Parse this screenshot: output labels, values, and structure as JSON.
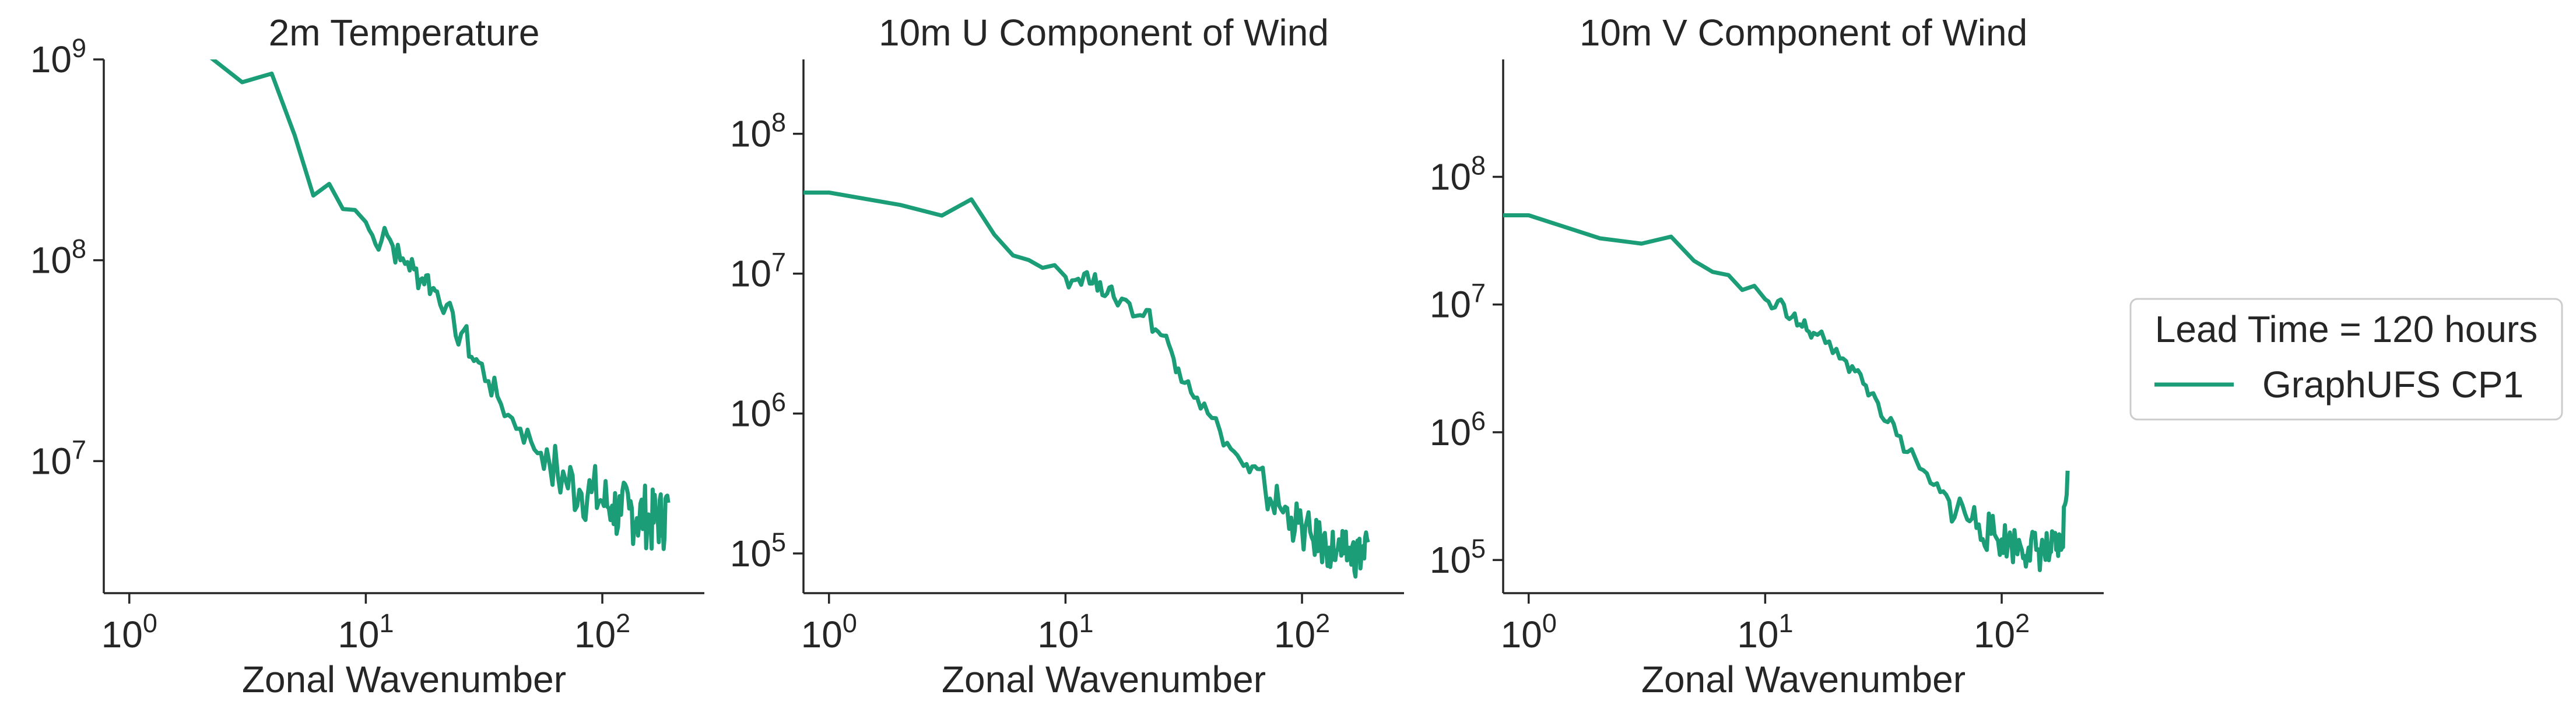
{
  "legend": {
    "title": "Lead Time = 120 hours",
    "entries": [
      {
        "label": "GraphUFS CP1",
        "color": "#1b9e77"
      }
    ]
  },
  "chart_data": [
    {
      "type": "line",
      "title": "2m Temperature",
      "xlabel": "Zonal Wavenumber",
      "ylabel": "",
      "xscale": "log",
      "yscale": "log",
      "xlim": [
        0.78,
        270
      ],
      "ylim": [
        2200000,
        1000000000
      ],
      "xticks": [
        {
          "v": 1,
          "b": "10",
          "e": "0"
        },
        {
          "v": 10,
          "b": "10",
          "e": "1"
        },
        {
          "v": 100,
          "b": "10",
          "e": "2"
        }
      ],
      "yticks": [
        {
          "v": 10000000,
          "b": "10",
          "e": "7"
        },
        {
          "v": 100000000,
          "b": "10",
          "e": "8"
        },
        {
          "v": 1000000000,
          "b": "10",
          "e": "9"
        }
      ],
      "series": [
        {
          "name": "GraphUFS CP1",
          "color": "#1b9e77",
          "x": [
            2,
            3,
            4,
            5,
            6,
            7,
            8,
            9,
            10,
            11,
            12,
            13,
            14,
            15,
            16,
            17,
            18,
            19,
            20,
            22,
            24,
            26,
            28,
            30,
            33,
            36,
            40,
            45,
            50,
            55,
            60,
            70,
            80,
            90,
            100,
            110,
            120,
            130,
            140,
            150,
            160,
            170,
            180,
            190
          ],
          "y": [
            1120000000,
            770000000,
            850000000,
            420000000,
            210000000,
            240000000,
            180000000,
            178000000,
            155000000,
            120000000,
            145000000,
            118000000,
            100000000,
            98000000,
            90000000,
            80000000,
            84000000,
            72000000,
            70000000,
            60000000,
            42000000,
            45000000,
            33000000,
            31000000,
            25000000,
            21000000,
            17000000,
            14500000,
            12500000,
            11000000,
            9500000,
            8000000,
            7200000,
            7000000,
            6300000,
            6000000,
            5400000,
            5800000,
            5200000,
            5500000,
            4900000,
            5300000,
            5000000,
            6200000
          ]
        }
      ]
    },
    {
      "type": "line",
      "title": "10m U Component of Wind",
      "xlabel": "Zonal Wavenumber",
      "ylabel": "",
      "xscale": "log",
      "yscale": "log",
      "xlim": [
        0.78,
        270
      ],
      "ylim": [
        52000,
        340000000
      ],
      "xticks": [
        {
          "v": 1,
          "b": "10",
          "e": "0"
        },
        {
          "v": 10,
          "b": "10",
          "e": "1"
        },
        {
          "v": 100,
          "b": "10",
          "e": "2"
        }
      ],
      "yticks": [
        {
          "v": 100000,
          "b": "10",
          "e": "5"
        },
        {
          "v": 1000000,
          "b": "10",
          "e": "6"
        },
        {
          "v": 10000000,
          "b": "10",
          "e": "7"
        },
        {
          "v": 100000000,
          "b": "10",
          "e": "8"
        }
      ],
      "series": [
        {
          "name": "GraphUFS CP1",
          "color": "#1b9e77",
          "x": [
            0.78,
            1,
            2,
            3,
            4,
            5,
            6,
            7,
            8,
            9,
            10,
            11,
            12,
            13,
            14,
            15,
            16,
            18,
            20,
            22,
            24,
            26,
            28,
            30,
            33,
            36,
            40,
            45,
            50,
            55,
            60,
            70,
            80,
            90,
            100,
            110,
            120,
            130,
            140,
            150,
            160,
            170,
            180,
            190
          ],
          "y": [
            38000000,
            38000000,
            31000000,
            26000000,
            34000000,
            19000000,
            13500000,
            12500000,
            11000000,
            11500000,
            9500000,
            9000000,
            10000000,
            8500000,
            8700000,
            7200000,
            6800000,
            6500000,
            5000000,
            5500000,
            4000000,
            3600000,
            2800000,
            2100000,
            1700000,
            1300000,
            1000000,
            750000,
            560000,
            460000,
            380000,
            280000,
            220000,
            180000,
            150000,
            130000,
            120000,
            110000,
            105000,
            100000,
            100000,
            98000,
            97000,
            120000
          ]
        }
      ]
    },
    {
      "type": "line",
      "title": "10m V Component of Wind",
      "xlabel": "Zonal Wavenumber",
      "ylabel": "",
      "xscale": "log",
      "yscale": "log",
      "xlim": [
        0.78,
        270
      ],
      "ylim": [
        55000,
        830000000
      ],
      "xticks": [
        {
          "v": 1,
          "b": "10",
          "e": "0"
        },
        {
          "v": 10,
          "b": "10",
          "e": "1"
        },
        {
          "v": 100,
          "b": "10",
          "e": "2"
        }
      ],
      "yticks": [
        {
          "v": 100000,
          "b": "10",
          "e": "5"
        },
        {
          "v": 1000000,
          "b": "10",
          "e": "6"
        },
        {
          "v": 10000000,
          "b": "10",
          "e": "7"
        },
        {
          "v": 100000000,
          "b": "10",
          "e": "8"
        }
      ],
      "series": [
        {
          "name": "GraphUFS CP1",
          "color": "#1b9e77",
          "x": [
            0.78,
            1,
            2,
            3,
            4,
            5,
            6,
            7,
            8,
            9,
            10,
            11,
            12,
            13,
            14,
            15,
            16,
            18,
            20,
            22,
            24,
            26,
            28,
            30,
            33,
            36,
            40,
            45,
            50,
            55,
            60,
            70,
            80,
            90,
            100,
            110,
            120,
            130,
            140,
            150,
            160,
            170,
            180,
            190
          ],
          "y": [
            50000000,
            50000000,
            33000000,
            30000000,
            34000000,
            22000000,
            18000000,
            17000000,
            13000000,
            14000000,
            11000000,
            9500000,
            10000000,
            8000000,
            7000000,
            6300000,
            6000000,
            5000000,
            4500000,
            3600000,
            3000000,
            2400000,
            2000000,
            1700000,
            1200000,
            950000,
            700000,
            520000,
            400000,
            340000,
            290000,
            230000,
            190000,
            160000,
            145000,
            135000,
            130000,
            125000,
            120000,
            118000,
            115000,
            120000,
            125000,
            500000
          ]
        }
      ]
    }
  ]
}
